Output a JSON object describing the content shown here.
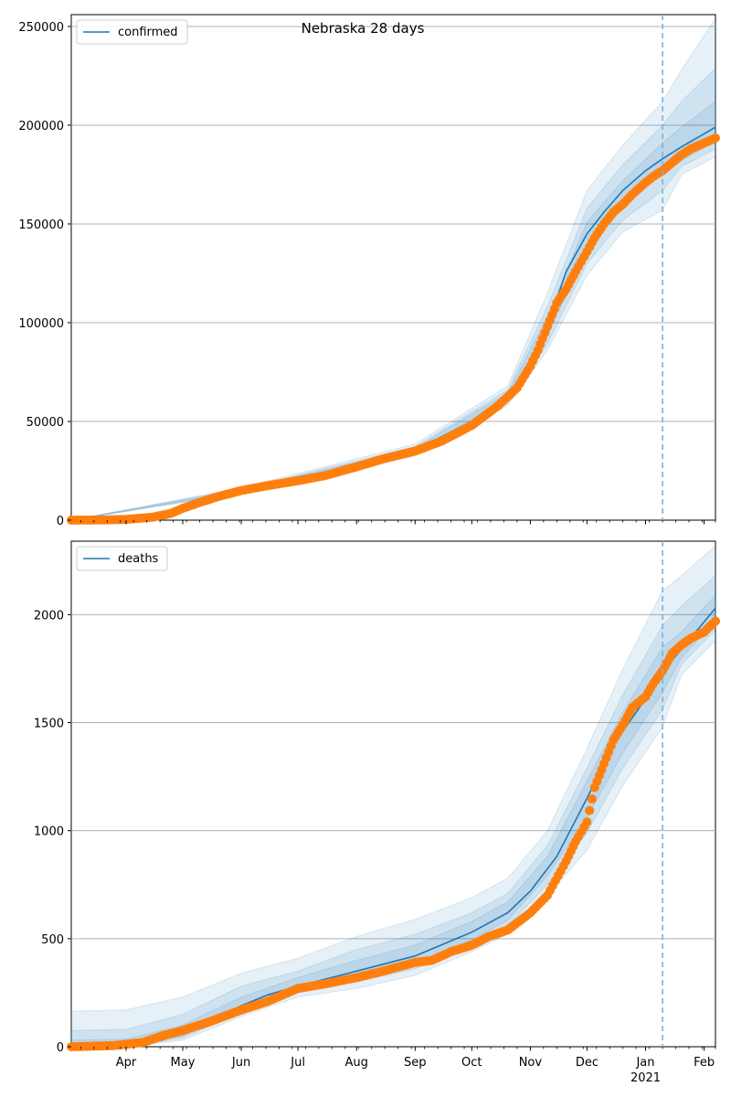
{
  "title": "Nebraska 28 days",
  "colors": {
    "model_line": "#1f77b4",
    "observed_points": "#ff7f0e",
    "band": "#1f77b4",
    "forecast_marker": "#7fb1d8",
    "grid": "#b0b0b0"
  },
  "x_axis": {
    "month_ticks": [
      "Apr",
      "May",
      "Jun",
      "Jul",
      "Aug",
      "Sep",
      "Oct",
      "Nov",
      "Dec",
      "Jan",
      "Feb"
    ],
    "year_label": "2021"
  },
  "chart_data": [
    {
      "type": "line",
      "title": "Nebraska 28 days",
      "legend": "confirmed",
      "legend_position": "top-left",
      "grid": "horizontal",
      "ylim": [
        0,
        256000
      ],
      "yticks": [
        0,
        50000,
        100000,
        150000,
        200000,
        250000
      ],
      "ytick_labels": [
        "0",
        "50000",
        "100000",
        "150000",
        "200000",
        "250000"
      ],
      "xlim": [
        "2020-03-03",
        "2021-02-07"
      ],
      "forecast_start": "2021-01-10",
      "model": {
        "x": [
          "2020-03-03",
          "2020-04-01",
          "2020-05-01",
          "2020-06-01",
          "2020-07-01",
          "2020-08-01",
          "2020-09-01",
          "2020-10-01",
          "2020-10-20",
          "2020-11-01",
          "2020-11-10",
          "2020-11-20",
          "2020-12-01",
          "2020-12-10",
          "2020-12-20",
          "2021-01-01",
          "2021-01-10",
          "2021-01-20",
          "2021-02-07"
        ],
        "y": [
          0,
          800,
          6000,
          15000,
          19500,
          27000,
          35500,
          50000,
          63000,
          79000,
          98000,
          126000,
          145000,
          156000,
          167000,
          177000,
          183000,
          189000,
          199000
        ]
      },
      "bands": [
        {
          "x": [
            "2020-03-03",
            "2020-06-01",
            "2020-09-01",
            "2020-10-20",
            "2020-11-10",
            "2020-12-01",
            "2020-12-20",
            "2021-01-10",
            "2021-01-20",
            "2021-02-07"
          ],
          "upper": [
            0,
            16500,
            38500,
            68000,
            115000,
            167000,
            190000,
            212000,
            228000,
            254000
          ],
          "lower": [
            0,
            13500,
            32500,
            58000,
            86000,
            124000,
            146000,
            157000,
            175000,
            184000
          ]
        },
        {
          "x": [
            "2020-03-03",
            "2020-06-01",
            "2020-09-01",
            "2020-10-20",
            "2020-11-10",
            "2020-12-01",
            "2020-12-20",
            "2021-01-10",
            "2021-01-20",
            "2021-02-07"
          ],
          "upper": [
            0,
            15900,
            37200,
            66000,
            108000,
            158000,
            180000,
            200000,
            212000,
            229000
          ],
          "lower": [
            0,
            14100,
            33800,
            60000,
            89000,
            130000,
            152000,
            167000,
            179000,
            188000
          ]
        },
        {
          "x": [
            "2020-03-03",
            "2020-06-01",
            "2020-09-01",
            "2020-10-20",
            "2020-11-10",
            "2020-12-01",
            "2020-12-20",
            "2021-01-10",
            "2021-01-20",
            "2021-02-07"
          ],
          "upper": [
            0,
            15400,
            36400,
            64500,
            103000,
            151000,
            172000,
            191000,
            199000,
            212000
          ],
          "lower": [
            0,
            14600,
            34600,
            61500,
            93000,
            138000,
            160000,
            175000,
            182000,
            192000
          ]
        }
      ],
      "observed": {
        "x": [
          "2020-03-03",
          "2020-03-20",
          "2020-04-01",
          "2020-04-15",
          "2020-04-25",
          "2020-05-01",
          "2020-05-10",
          "2020-05-20",
          "2020-06-01",
          "2020-06-15",
          "2020-07-01",
          "2020-07-15",
          "2020-08-01",
          "2020-08-15",
          "2020-09-01",
          "2020-09-15",
          "2020-10-01",
          "2020-10-15",
          "2020-10-25",
          "2020-11-01",
          "2020-11-05",
          "2020-11-10",
          "2020-11-15",
          "2020-11-20",
          "2020-11-25",
          "2020-12-01",
          "2020-12-05",
          "2020-12-10",
          "2020-12-15",
          "2020-12-20",
          "2020-12-25",
          "2021-01-01",
          "2021-01-05",
          "2021-01-10",
          "2021-01-15",
          "2021-01-20",
          "2021-01-25",
          "2021-02-01",
          "2021-02-07"
        ],
        "y": [
          0,
          100,
          400,
          1500,
          3500,
          6000,
          9000,
          12000,
          15000,
          17500,
          20000,
          22500,
          27000,
          31000,
          35000,
          40000,
          48000,
          58000,
          67000,
          78000,
          86000,
          98000,
          110000,
          117000,
          126000,
          136000,
          143000,
          150000,
          156000,
          160000,
          165000,
          171000,
          174000,
          177000,
          181000,
          185000,
          188000,
          191000,
          193500
        ]
      }
    },
    {
      "type": "line",
      "legend": "deaths",
      "legend_position": "top-left",
      "grid": "horizontal",
      "ylim": [
        0,
        2340
      ],
      "yticks": [
        0,
        500,
        1000,
        1500,
        2000
      ],
      "ytick_labels": [
        "0",
        "500",
        "1000",
        "1500",
        "2000"
      ],
      "xlim": [
        "2020-03-03",
        "2021-02-07"
      ],
      "forecast_start": "2021-01-10",
      "model": {
        "x": [
          "2020-03-03",
          "2020-04-01",
          "2020-04-20",
          "2020-05-01",
          "2020-05-15",
          "2020-06-01",
          "2020-06-15",
          "2020-07-01",
          "2020-08-01",
          "2020-09-01",
          "2020-10-01",
          "2020-10-20",
          "2020-11-01",
          "2020-11-15",
          "2020-12-01",
          "2020-12-15",
          "2021-01-01",
          "2021-01-10",
          "2021-01-20",
          "2021-02-07"
        ],
        "y": [
          0,
          8,
          30,
          70,
          120,
          190,
          240,
          280,
          350,
          420,
          530,
          620,
          720,
          880,
          1150,
          1400,
          1610,
          1740,
          1840,
          2030
        ]
      },
      "bands": [
        {
          "x": [
            "2020-03-03",
            "2020-04-01",
            "2020-05-01",
            "2020-06-01",
            "2020-07-01",
            "2020-08-01",
            "2020-09-01",
            "2020-10-01",
            "2020-10-20",
            "2020-11-10",
            "2020-12-01",
            "2020-12-20",
            "2021-01-10",
            "2021-01-20",
            "2021-02-07"
          ],
          "upper": [
            165,
            170,
            230,
            340,
            410,
            510,
            590,
            690,
            780,
            1000,
            1380,
            1750,
            2110,
            2180,
            2320
          ],
          "lower": [
            0,
            0,
            30,
            140,
            230,
            270,
            330,
            440,
            520,
            700,
            910,
            1210,
            1480,
            1720,
            1880
          ]
        },
        {
          "x": [
            "2020-03-03",
            "2020-04-01",
            "2020-05-01",
            "2020-06-01",
            "2020-07-01",
            "2020-08-01",
            "2020-09-01",
            "2020-10-01",
            "2020-10-20",
            "2020-11-10",
            "2020-12-01",
            "2020-12-20",
            "2021-01-10",
            "2021-01-20",
            "2021-02-07"
          ],
          "upper": [
            75,
            80,
            150,
            280,
            350,
            450,
            520,
            620,
            710,
            930,
            1290,
            1630,
            1950,
            2040,
            2180
          ],
          "lower": [
            0,
            0,
            40,
            160,
            250,
            300,
            360,
            470,
            560,
            750,
            990,
            1290,
            1560,
            1770,
            1930
          ]
        },
        {
          "x": [
            "2020-03-03",
            "2020-04-01",
            "2020-05-01",
            "2020-06-01",
            "2020-07-01",
            "2020-08-01",
            "2020-09-01",
            "2020-10-01",
            "2020-10-20",
            "2020-11-10",
            "2020-12-01",
            "2020-12-20",
            "2021-01-10",
            "2021-01-20",
            "2021-02-07"
          ],
          "upper": [
            30,
            35,
            100,
            230,
            320,
            400,
            470,
            580,
            670,
            880,
            1230,
            1550,
            1850,
            1920,
            2090
          ],
          "lower": [
            0,
            0,
            50,
            170,
            265,
            320,
            385,
            495,
            585,
            790,
            1060,
            1360,
            1640,
            1800,
            1970
          ]
        }
      ],
      "observed": {
        "x": [
          "2020-03-03",
          "2020-03-25",
          "2020-04-10",
          "2020-04-20",
          "2020-05-01",
          "2020-05-15",
          "2020-06-01",
          "2020-06-15",
          "2020-07-01",
          "2020-07-15",
          "2020-08-01",
          "2020-08-15",
          "2020-09-01",
          "2020-09-10",
          "2020-09-20",
          "2020-10-01",
          "2020-10-10",
          "2020-10-20",
          "2020-11-01",
          "2020-11-10",
          "2020-11-20",
          "2020-11-25",
          "2020-12-01",
          "2020-12-05",
          "2020-12-10",
          "2020-12-15",
          "2020-12-20",
          "2020-12-25",
          "2021-01-01",
          "2021-01-05",
          "2021-01-10",
          "2021-01-15",
          "2021-01-20",
          "2021-01-25",
          "2021-02-01",
          "2021-02-07"
        ],
        "y": [
          0,
          5,
          20,
          50,
          75,
          115,
          170,
          210,
          270,
          290,
          320,
          350,
          390,
          400,
          440,
          470,
          510,
          540,
          620,
          700,
          860,
          950,
          1040,
          1200,
          1310,
          1420,
          1490,
          1570,
          1620,
          1680,
          1740,
          1820,
          1860,
          1890,
          1920,
          1970
        ]
      }
    }
  ]
}
